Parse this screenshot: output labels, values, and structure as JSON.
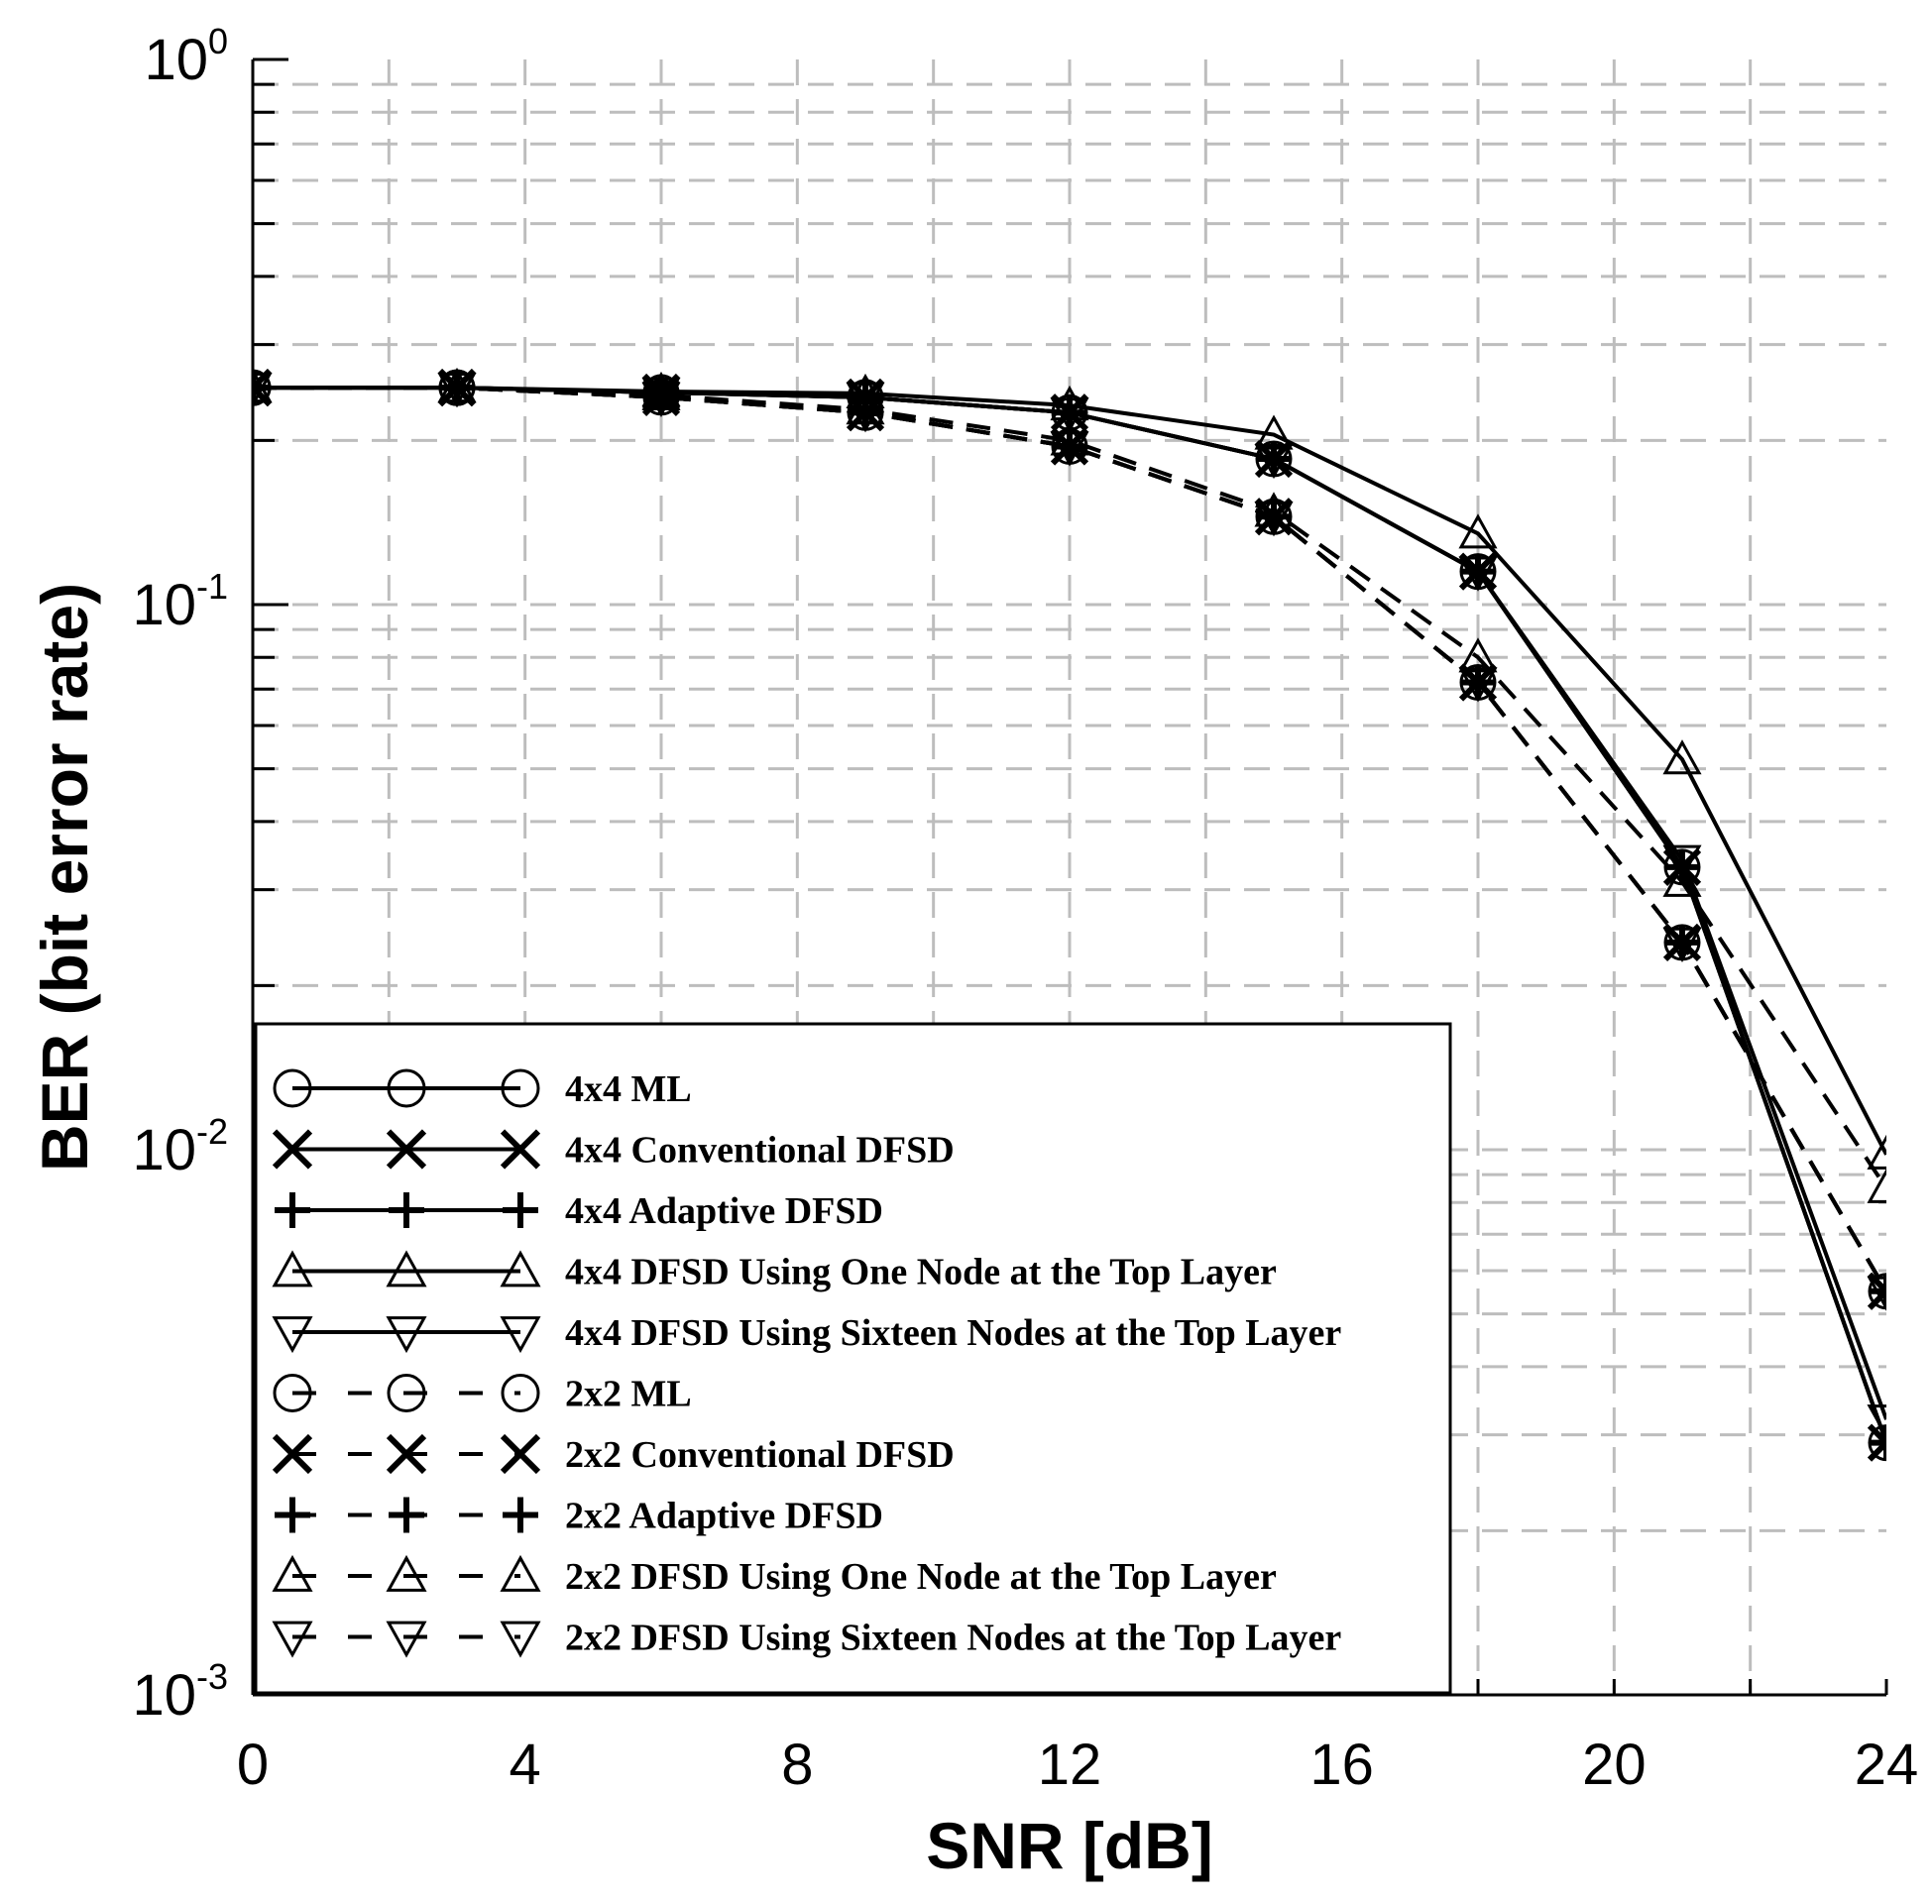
{
  "chart_data": {
    "type": "line",
    "title": "",
    "xlabel": "SNR [dB]",
    "ylabel": "BER (bit error rate)",
    "xlim": [
      0,
      24
    ],
    "ylim": [
      0.001,
      1
    ],
    "yscale": "log",
    "grid": true,
    "x_ticks": [
      "0",
      "4",
      "8",
      "12",
      "16",
      "20",
      "24"
    ],
    "y_ticks": [
      {
        "base": "10",
        "exp": "0"
      },
      {
        "base": "10",
        "exp": "-1"
      },
      {
        "base": "10",
        "exp": "-2"
      },
      {
        "base": "10",
        "exp": "-3"
      }
    ],
    "legend_position": "lower-left",
    "x": [
      0,
      3,
      6,
      9,
      12,
      15,
      18,
      21,
      24
    ],
    "series": [
      {
        "name": "4x4 ML",
        "marker": "circle",
        "style": "solid",
        "values": [
          0.25,
          0.25,
          0.245,
          0.24,
          0.225,
          0.185,
          0.115,
          0.033,
          0.0029
        ]
      },
      {
        "name": "4x4 Conventional DFSD",
        "marker": "x",
        "style": "solid",
        "values": [
          0.25,
          0.25,
          0.245,
          0.24,
          0.225,
          0.185,
          0.115,
          0.033,
          0.0029
        ]
      },
      {
        "name": "4x4 Adaptive DFSD",
        "marker": "plus",
        "style": "solid",
        "values": [
          0.25,
          0.25,
          0.245,
          0.24,
          0.225,
          0.185,
          0.115,
          0.033,
          0.0029
        ]
      },
      {
        "name": "4x4 DFSD Using One Node at the Top Layer",
        "marker": "triangle-up",
        "style": "solid",
        "values": [
          0.25,
          0.25,
          0.246,
          0.244,
          0.232,
          0.205,
          0.135,
          0.052,
          0.0098
        ]
      },
      {
        "name": "4x4 DFSD Using Sixteen Nodes at the Top Layer",
        "marker": "triangle-down",
        "style": "solid",
        "values": [
          0.25,
          0.25,
          0.245,
          0.24,
          0.225,
          0.185,
          0.115,
          0.034,
          0.0032
        ]
      },
      {
        "name": "2x2 ML",
        "marker": "circle",
        "style": "dashed",
        "values": [
          0.25,
          0.25,
          0.24,
          0.225,
          0.195,
          0.145,
          0.072,
          0.024,
          0.0055
        ]
      },
      {
        "name": "2x2 Conventional DFSD",
        "marker": "x",
        "style": "dashed",
        "values": [
          0.25,
          0.25,
          0.24,
          0.225,
          0.195,
          0.145,
          0.072,
          0.024,
          0.0055
        ]
      },
      {
        "name": "2x2 Adaptive DFSD",
        "marker": "plus",
        "style": "dashed",
        "values": [
          0.25,
          0.25,
          0.24,
          0.225,
          0.195,
          0.145,
          0.072,
          0.024,
          0.0055
        ]
      },
      {
        "name": "2x2 DFSD Using One Node at the Top Layer",
        "marker": "triangle-up",
        "style": "dashed",
        "values": [
          0.25,
          0.25,
          0.242,
          0.228,
          0.2,
          0.148,
          0.08,
          0.031,
          0.0085
        ]
      },
      {
        "name": "2x2 DFSD Using Sixteen Nodes at the Top Layer",
        "marker": "triangle-down",
        "style": "dashed",
        "values": [
          0.25,
          0.25,
          0.24,
          0.225,
          0.195,
          0.145,
          0.072,
          0.024,
          0.0055
        ]
      }
    ]
  }
}
